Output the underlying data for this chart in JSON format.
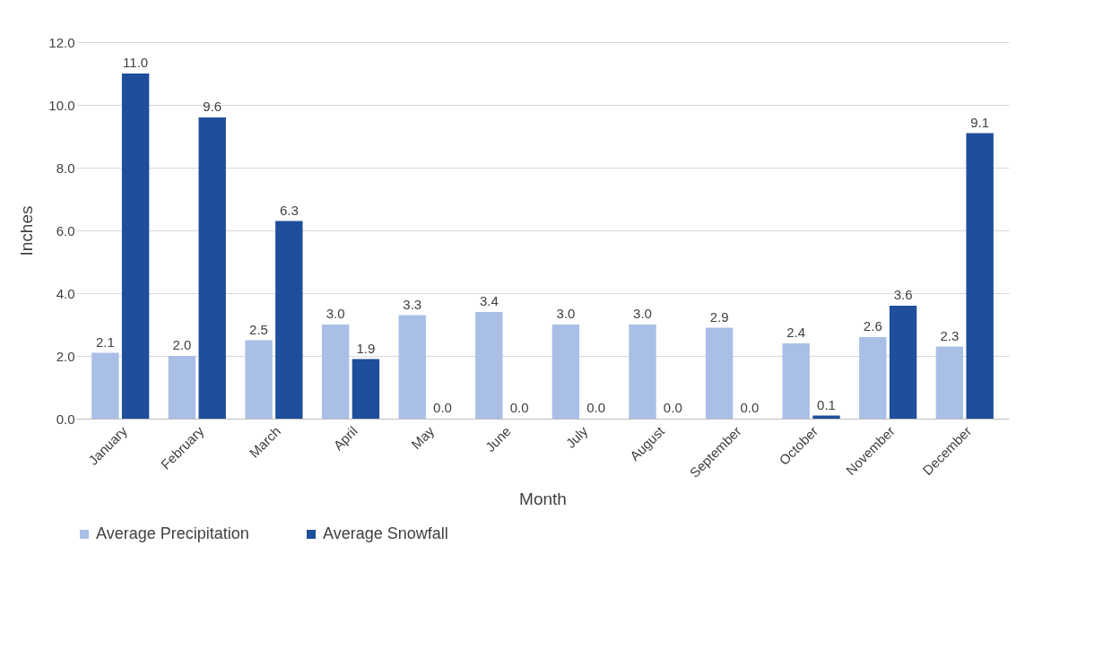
{
  "chart_data": {
    "type": "bar",
    "xlabel": "Month",
    "ylabel": "Inches",
    "categories": [
      "January",
      "February",
      "March",
      "April",
      "May",
      "June",
      "July",
      "August",
      "September",
      "October",
      "November",
      "December"
    ],
    "series": [
      {
        "name": "Average Precipitation",
        "color": "#a9bfe6",
        "values": [
          2.1,
          2.0,
          2.5,
          3.0,
          3.3,
          3.4,
          3.0,
          3.0,
          2.9,
          2.4,
          2.6,
          2.3
        ],
        "value_labels": [
          "2.1",
          "2.0",
          "2.5",
          "3.0",
          "3.3",
          "3.4",
          "3.0",
          "3.0",
          "2.9",
          "2.4",
          "2.6",
          "2.3"
        ]
      },
      {
        "name": "Average Snowfall",
        "color": "#1f4e9c",
        "values": [
          11.0,
          9.6,
          6.3,
          1.9,
          0.0,
          0.0,
          0.0,
          0.0,
          0.0,
          0.1,
          3.6,
          9.1
        ],
        "value_labels": [
          "11.0",
          "9.6",
          "6.3",
          "1.9",
          "0.0",
          "0.0",
          "0.0",
          "0.0",
          "0.0",
          "0.1",
          "3.6",
          "9.1"
        ]
      }
    ],
    "ylim": [
      0,
      12
    ],
    "yticks": [
      {
        "value": 0,
        "label": "0.0"
      },
      {
        "value": 2,
        "label": "2.0"
      },
      {
        "value": 4,
        "label": "4.0"
      },
      {
        "value": 6,
        "label": "6.0"
      },
      {
        "value": 8,
        "label": "8.0"
      },
      {
        "value": 10,
        "label": "10.0"
      },
      {
        "value": 12,
        "label": "12.0"
      }
    ],
    "grid": "y",
    "legend": "bottom"
  }
}
